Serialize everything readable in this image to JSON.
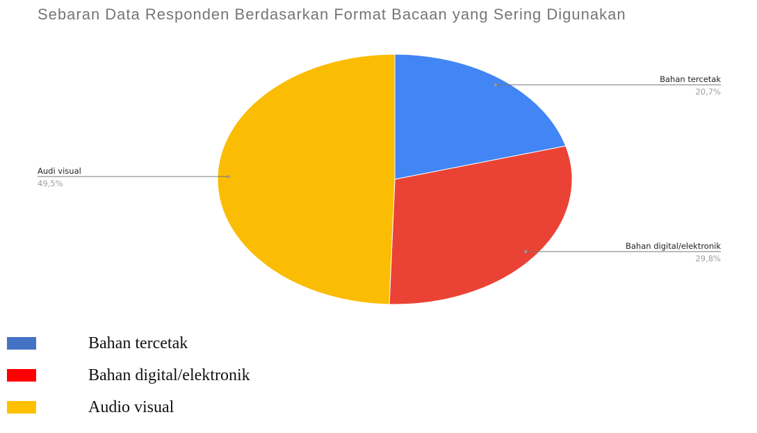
{
  "chart_data": {
    "type": "pie",
    "title": "Sebaran Data Responden Berdasarkan Format Bacaan yang Sering Digunakan",
    "slices": [
      {
        "label": "Bahan tercetak",
        "value": 20.7,
        "display": "20,7%",
        "color": "#4285F4"
      },
      {
        "label": "Bahan digital/elektronik",
        "value": 29.8,
        "display": "29,8%",
        "color": "#EA4335"
      },
      {
        "label": "Audi visual",
        "value": 49.5,
        "display": "49,5%",
        "color": "#FBBC04"
      }
    ]
  },
  "legend": {
    "items": [
      {
        "label": "Bahan tercetak",
        "color": "#4472C4"
      },
      {
        "label": "Bahan digital/elektronik",
        "color": "#FF0000"
      },
      {
        "label": "Audio visual",
        "color": "#FFC000"
      }
    ]
  }
}
